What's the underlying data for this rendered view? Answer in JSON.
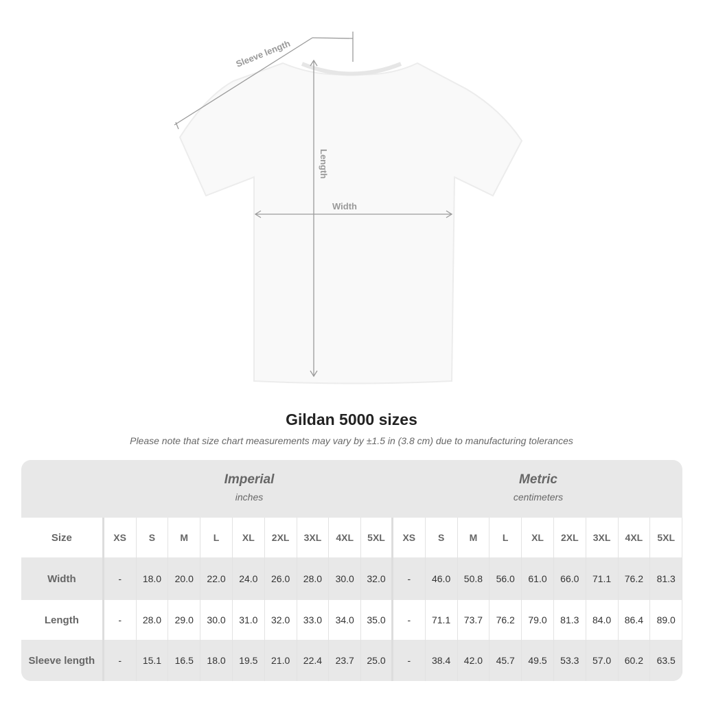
{
  "diagram": {
    "sleeve_label": "Sleeve length",
    "length_label": "Length",
    "width_label": "Width"
  },
  "title": "Gildan 5000 sizes",
  "note": "Please note that size chart measurements may vary by ±1.5 in (3.8 cm) due to manufacturing tolerances",
  "table": {
    "imperial": {
      "label": "Imperial",
      "unit": "inches"
    },
    "metric": {
      "label": "Metric",
      "unit": "centimeters"
    },
    "size_label": "Size",
    "sizes": [
      "XS",
      "S",
      "M",
      "L",
      "XL",
      "2XL",
      "3XL",
      "4XL",
      "5XL"
    ],
    "rows": [
      {
        "label": "Width",
        "imperial": [
          "-",
          "18.0",
          "20.0",
          "22.0",
          "24.0",
          "26.0",
          "28.0",
          "30.0",
          "32.0"
        ],
        "metric": [
          "-",
          "46.0",
          "50.8",
          "56.0",
          "61.0",
          "66.0",
          "71.1",
          "76.2",
          "81.3"
        ]
      },
      {
        "label": "Length",
        "imperial": [
          "-",
          "28.0",
          "29.0",
          "30.0",
          "31.0",
          "32.0",
          "33.0",
          "34.0",
          "35.0"
        ],
        "metric": [
          "-",
          "71.1",
          "73.7",
          "76.2",
          "79.0",
          "81.3",
          "84.0",
          "86.4",
          "89.0"
        ]
      },
      {
        "label": "Sleeve length",
        "imperial": [
          "-",
          "15.1",
          "16.5",
          "18.0",
          "19.5",
          "21.0",
          "22.4",
          "23.7",
          "25.0"
        ],
        "metric": [
          "-",
          "38.4",
          "42.0",
          "45.7",
          "49.5",
          "53.3",
          "57.0",
          "60.2",
          "63.5"
        ]
      }
    ]
  }
}
